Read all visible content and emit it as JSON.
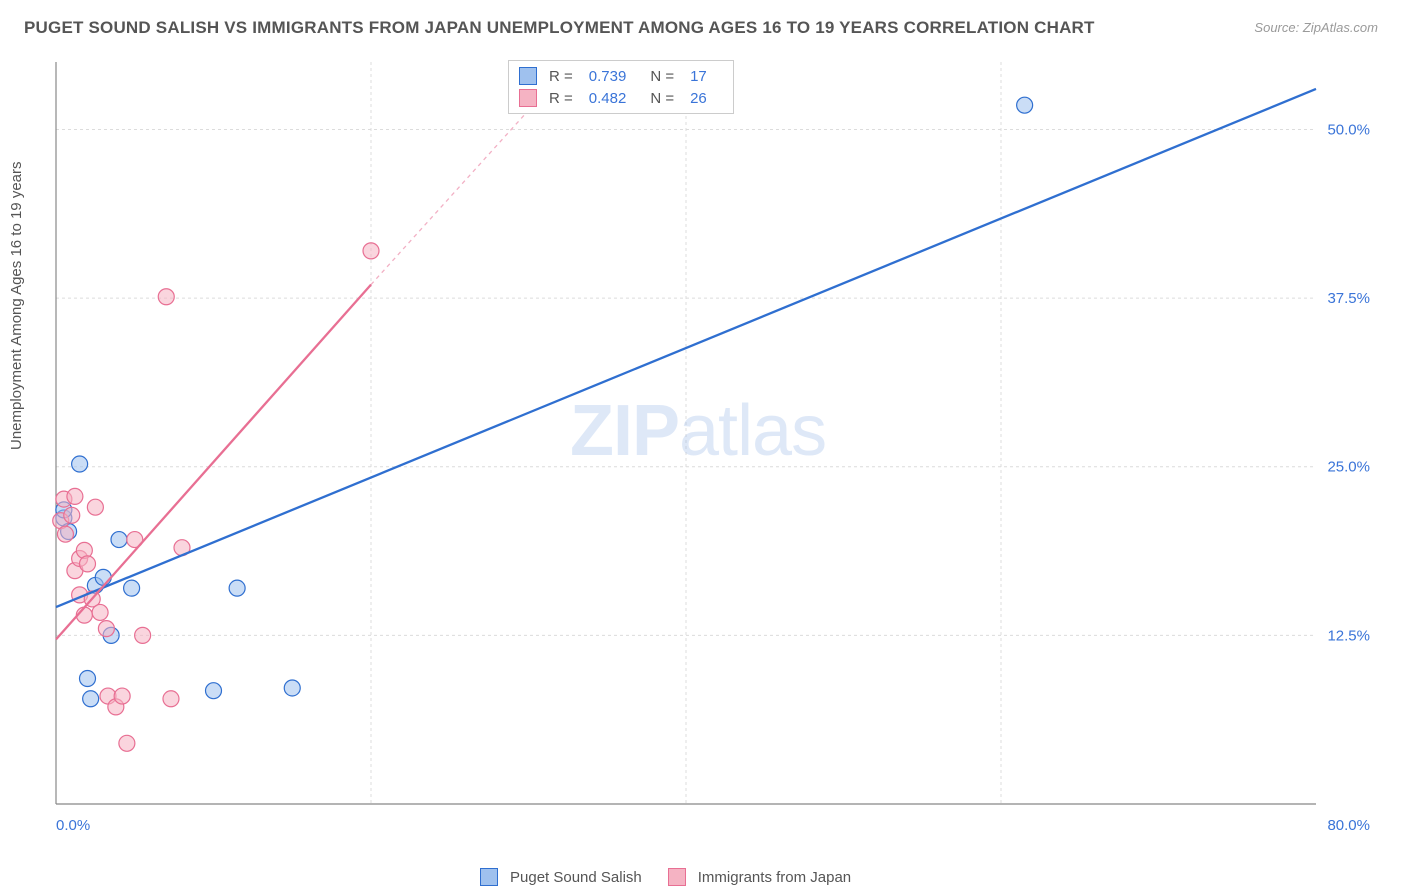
{
  "title": "PUGET SOUND SALISH VS IMMIGRANTS FROM JAPAN UNEMPLOYMENT AMONG AGES 16 TO 19 YEARS CORRELATION CHART",
  "source_label": "Source:",
  "source_value": "ZipAtlas.com",
  "ylabel": "Unemployment Among Ages 16 to 19 years",
  "watermark_bold": "ZIP",
  "watermark_rest": "atlas",
  "chart": {
    "type": "scatter",
    "background_color": "#ffffff",
    "grid_color": "#dcdcdc",
    "axis_color": "#888888",
    "xlim": [
      0,
      80
    ],
    "ylim": [
      0,
      55
    ],
    "y_ticks": [
      12.5,
      25.0,
      37.5,
      50.0
    ],
    "y_tick_labels": [
      "12.5%",
      "25.0%",
      "37.5%",
      "50.0%"
    ],
    "x_min_label": "0.0%",
    "x_max_label": "80.0%",
    "x_grid": [
      20,
      40,
      60
    ],
    "marker_radius": 8,
    "marker_fill_opacity": 0.55,
    "line_width": 2.3,
    "series": [
      {
        "name": "Puget Sound Salish",
        "fill": "#9fc1ee",
        "stroke": "#2f6fd0",
        "r_value": "0.739",
        "n_value": "17",
        "points": [
          [
            0.5,
            21.2
          ],
          [
            0.5,
            21.8
          ],
          [
            0.8,
            20.2
          ],
          [
            1.5,
            25.2
          ],
          [
            2.5,
            16.2
          ],
          [
            3.0,
            16.8
          ],
          [
            3.5,
            12.5
          ],
          [
            4.0,
            19.6
          ],
          [
            4.8,
            16.0
          ],
          [
            2.0,
            9.3
          ],
          [
            2.2,
            7.8
          ],
          [
            10.0,
            8.4
          ],
          [
            11.5,
            16.0
          ],
          [
            15.0,
            8.6
          ],
          [
            61.5,
            51.8
          ]
        ],
        "regression": {
          "x1": 0,
          "y1": 14.6,
          "x2": 80,
          "y2": 53.0
        }
      },
      {
        "name": "Immigrants from Japan",
        "fill": "#f5b3c3",
        "stroke": "#e86f93",
        "r_value": "0.482",
        "n_value": "26",
        "points": [
          [
            0.3,
            21.0
          ],
          [
            0.5,
            22.6
          ],
          [
            0.6,
            20.0
          ],
          [
            1.0,
            21.4
          ],
          [
            1.2,
            22.8
          ],
          [
            1.2,
            17.3
          ],
          [
            1.5,
            18.2
          ],
          [
            1.5,
            15.5
          ],
          [
            1.8,
            18.8
          ],
          [
            1.8,
            14.0
          ],
          [
            2.0,
            17.8
          ],
          [
            2.3,
            15.2
          ],
          [
            2.5,
            22.0
          ],
          [
            2.8,
            14.2
          ],
          [
            3.2,
            13.0
          ],
          [
            3.3,
            8.0
          ],
          [
            3.8,
            7.2
          ],
          [
            4.2,
            8.0
          ],
          [
            4.5,
            4.5
          ],
          [
            5.0,
            19.6
          ],
          [
            5.5,
            12.5
          ],
          [
            7.0,
            37.6
          ],
          [
            7.3,
            7.8
          ],
          [
            8.0,
            19.0
          ],
          [
            20.0,
            41.0
          ]
        ],
        "regression_solid": {
          "x1": 0,
          "y1": 12.2,
          "x2": 20,
          "y2": 38.5
        },
        "regression_dash": {
          "x1": 20,
          "y1": 38.5,
          "x2": 32,
          "y2": 54.0
        }
      }
    ]
  },
  "legend_top": {
    "r_label": "R =",
    "n_label": "N ="
  },
  "legend_bottom": {
    "items": [
      "Puget Sound Salish",
      "Immigrants from Japan"
    ]
  }
}
